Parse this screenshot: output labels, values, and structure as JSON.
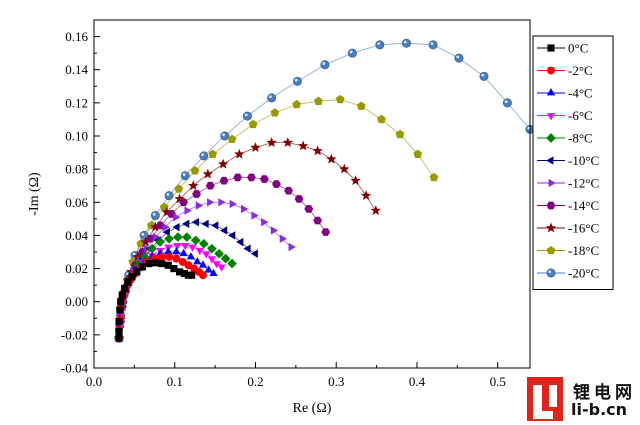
{
  "chart_data": {
    "type": "scatter",
    "title": "",
    "xlabel": "Re (Ω)",
    "ylabel": "-Im (Ω)",
    "xlim": [
      0.0,
      0.54
    ],
    "ylim": [
      -0.04,
      0.17
    ],
    "xticks": [
      "0.0",
      "0.1",
      "0.2",
      "0.3",
      "0.4",
      "0.5"
    ],
    "xtick_values": [
      0.0,
      0.1,
      0.2,
      0.3,
      0.4,
      0.5
    ],
    "yticks": [
      "-0.04",
      "-0.02",
      "0.00",
      "0.02",
      "0.04",
      "0.06",
      "0.08",
      "0.10",
      "0.12",
      "0.14",
      "0.16"
    ],
    "ytick_values": [
      -0.04,
      -0.02,
      0.0,
      0.02,
      0.04,
      0.06,
      0.08,
      0.1,
      0.12,
      0.14,
      0.16
    ],
    "legend_position": "right",
    "series": [
      {
        "name": "0°C",
        "color": "#000000",
        "marker": "square",
        "x": [
          0.031,
          0.031,
          0.031,
          0.032,
          0.033,
          0.035,
          0.038,
          0.042,
          0.047,
          0.053,
          0.06,
          0.068,
          0.076,
          0.084,
          0.092,
          0.099,
          0.106,
          0.112,
          0.117,
          0.121
        ],
        "y": [
          -0.022,
          -0.018,
          -0.012,
          -0.005,
          0.0,
          0.004,
          0.008,
          0.012,
          0.015,
          0.018,
          0.021,
          0.023,
          0.0235,
          0.023,
          0.022,
          0.02,
          0.018,
          0.017,
          0.016,
          0.016
        ]
      },
      {
        "name": "-2°C",
        "color": "#ff0000",
        "marker": "circle",
        "x": [
          0.031,
          0.031,
          0.032,
          0.033,
          0.034,
          0.036,
          0.04,
          0.045,
          0.051,
          0.058,
          0.066,
          0.075,
          0.084,
          0.093,
          0.102,
          0.11,
          0.117,
          0.124,
          0.13,
          0.135
        ],
        "y": [
          -0.022,
          -0.017,
          -0.011,
          -0.004,
          0.001,
          0.005,
          0.009,
          0.013,
          0.017,
          0.021,
          0.024,
          0.026,
          0.027,
          0.027,
          0.026,
          0.024,
          0.022,
          0.02,
          0.018,
          0.016
        ]
      },
      {
        "name": "-4°C",
        "color": "#0000ff",
        "marker": "triangle-up",
        "x": [
          0.031,
          0.031,
          0.032,
          0.033,
          0.035,
          0.038,
          0.042,
          0.048,
          0.055,
          0.063,
          0.072,
          0.082,
          0.092,
          0.102,
          0.111,
          0.12,
          0.128,
          0.135,
          0.142,
          0.148
        ],
        "y": [
          -0.022,
          -0.016,
          -0.01,
          -0.003,
          0.002,
          0.007,
          0.011,
          0.016,
          0.02,
          0.024,
          0.027,
          0.029,
          0.03,
          0.03,
          0.029,
          0.027,
          0.024,
          0.022,
          0.019,
          0.017
        ]
      },
      {
        "name": "-6°C",
        "color": "#ff00ff",
        "marker": "triangle-down",
        "x": [
          0.031,
          0.032,
          0.033,
          0.035,
          0.038,
          0.042,
          0.048,
          0.055,
          0.063,
          0.072,
          0.082,
          0.092,
          0.103,
          0.113,
          0.122,
          0.131,
          0.139,
          0.146,
          0.152,
          0.158
        ],
        "y": [
          -0.022,
          -0.015,
          -0.008,
          -0.001,
          0.004,
          0.009,
          0.014,
          0.019,
          0.024,
          0.028,
          0.031,
          0.033,
          0.034,
          0.034,
          0.033,
          0.031,
          0.029,
          0.026,
          0.023,
          0.021
        ]
      },
      {
        "name": "-8°C",
        "color": "#008000",
        "marker": "diamond",
        "x": [
          0.031,
          0.032,
          0.033,
          0.035,
          0.038,
          0.042,
          0.048,
          0.055,
          0.063,
          0.072,
          0.082,
          0.093,
          0.104,
          0.115,
          0.126,
          0.136,
          0.146,
          0.155,
          0.163,
          0.171
        ],
        "y": [
          -0.022,
          -0.015,
          -0.008,
          -0.001,
          0.005,
          0.01,
          0.016,
          0.022,
          0.027,
          0.032,
          0.036,
          0.038,
          0.039,
          0.039,
          0.037,
          0.035,
          0.032,
          0.029,
          0.026,
          0.023
        ]
      },
      {
        "name": "-10°C",
        "color": "#000080",
        "marker": "triangle-left",
        "x": [
          0.031,
          0.032,
          0.034,
          0.037,
          0.041,
          0.046,
          0.053,
          0.061,
          0.07,
          0.08,
          0.091,
          0.103,
          0.115,
          0.127,
          0.139,
          0.151,
          0.162,
          0.172,
          0.182,
          0.191,
          0.2
        ],
        "y": [
          -0.022,
          -0.014,
          -0.006,
          0.001,
          0.008,
          0.014,
          0.02,
          0.026,
          0.032,
          0.037,
          0.042,
          0.045,
          0.047,
          0.048,
          0.047,
          0.046,
          0.043,
          0.04,
          0.036,
          0.032,
          0.029
        ]
      },
      {
        "name": "-12°C",
        "color": "#8a2be2",
        "marker": "triangle-right",
        "x": [
          0.031,
          0.032,
          0.034,
          0.037,
          0.042,
          0.048,
          0.056,
          0.065,
          0.076,
          0.088,
          0.101,
          0.115,
          0.129,
          0.143,
          0.157,
          0.171,
          0.185,
          0.198,
          0.21,
          0.222,
          0.233,
          0.244
        ],
        "y": [
          -0.022,
          -0.013,
          -0.005,
          0.003,
          0.011,
          0.018,
          0.025,
          0.032,
          0.039,
          0.045,
          0.051,
          0.055,
          0.058,
          0.06,
          0.06,
          0.059,
          0.056,
          0.052,
          0.048,
          0.043,
          0.038,
          0.033
        ]
      },
      {
        "name": "-14°C",
        "color": "#800080",
        "marker": "hexagon",
        "x": [
          0.031,
          0.033,
          0.035,
          0.039,
          0.044,
          0.051,
          0.06,
          0.07,
          0.082,
          0.096,
          0.111,
          0.127,
          0.144,
          0.161,
          0.178,
          0.195,
          0.211,
          0.226,
          0.241,
          0.254,
          0.266,
          0.277,
          0.287
        ],
        "y": [
          -0.022,
          -0.012,
          -0.003,
          0.006,
          0.014,
          0.022,
          0.03,
          0.038,
          0.046,
          0.053,
          0.06,
          0.065,
          0.07,
          0.073,
          0.075,
          0.075,
          0.074,
          0.071,
          0.067,
          0.062,
          0.056,
          0.049,
          0.042
        ]
      },
      {
        "name": "-16°C",
        "color": "#800000",
        "marker": "star",
        "x": [
          0.031,
          0.033,
          0.036,
          0.04,
          0.046,
          0.054,
          0.064,
          0.076,
          0.09,
          0.106,
          0.123,
          0.141,
          0.16,
          0.18,
          0.2,
          0.22,
          0.24,
          0.259,
          0.277,
          0.294,
          0.31,
          0.324,
          0.337,
          0.349
        ],
        "y": [
          -0.022,
          -0.011,
          -0.001,
          0.009,
          0.018,
          0.027,
          0.036,
          0.045,
          0.054,
          0.062,
          0.07,
          0.077,
          0.083,
          0.089,
          0.093,
          0.096,
          0.096,
          0.094,
          0.091,
          0.086,
          0.08,
          0.073,
          0.064,
          0.055
        ]
      },
      {
        "name": "-18°C",
        "color": "#999900",
        "marker": "pentagon",
        "x": [
          0.031,
          0.033,
          0.036,
          0.041,
          0.048,
          0.058,
          0.071,
          0.087,
          0.105,
          0.125,
          0.147,
          0.171,
          0.197,
          0.224,
          0.251,
          0.278,
          0.305,
          0.331,
          0.356,
          0.379,
          0.401,
          0.421
        ],
        "y": [
          -0.022,
          -0.01,
          0.002,
          0.013,
          0.024,
          0.035,
          0.046,
          0.057,
          0.068,
          0.079,
          0.089,
          0.098,
          0.107,
          0.114,
          0.119,
          0.121,
          0.122,
          0.118,
          0.11,
          0.101,
          0.089,
          0.075
        ]
      },
      {
        "name": "-20°C",
        "color": "#4a7cc0",
        "marker": "sphere",
        "x": [
          0.031,
          0.033,
          0.037,
          0.043,
          0.051,
          0.062,
          0.076,
          0.093,
          0.113,
          0.136,
          0.162,
          0.19,
          0.22,
          0.252,
          0.286,
          0.32,
          0.354,
          0.387,
          0.42,
          0.452,
          0.483,
          0.512,
          0.54
        ],
        "y": [
          -0.022,
          -0.009,
          0.004,
          0.016,
          0.028,
          0.04,
          0.052,
          0.064,
          0.076,
          0.088,
          0.1,
          0.112,
          0.123,
          0.133,
          0.143,
          0.15,
          0.155,
          0.156,
          0.155,
          0.147,
          0.136,
          0.12,
          0.104
        ]
      }
    ]
  },
  "watermark": {
    "logo_letters": "Li",
    "site_name_cn": "锂电网",
    "site_url": "li-b.cn"
  }
}
